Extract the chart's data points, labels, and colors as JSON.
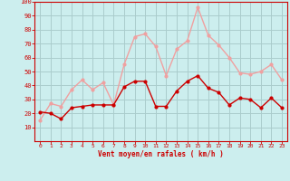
{
  "x": [
    0,
    1,
    2,
    3,
    4,
    5,
    6,
    7,
    8,
    9,
    10,
    11,
    12,
    13,
    14,
    15,
    16,
    17,
    18,
    19,
    20,
    21,
    22,
    23
  ],
  "wind_avg": [
    21,
    20,
    16,
    24,
    25,
    26,
    26,
    26,
    39,
    43,
    43,
    25,
    25,
    36,
    43,
    47,
    38,
    35,
    26,
    31,
    30,
    24,
    31,
    24
  ],
  "wind_gust": [
    15,
    27,
    25,
    37,
    44,
    37,
    42,
    26,
    55,
    75,
    77,
    68,
    47,
    66,
    72,
    96,
    76,
    69,
    60,
    49,
    48,
    50,
    55,
    44
  ],
  "avg_color": "#cc0000",
  "gust_color": "#f0a0a0",
  "bg_color": "#cceeee",
  "grid_color": "#aacccc",
  "xlabel": "Vent moyen/en rafales ( km/h )",
  "xlabel_color": "#cc0000",
  "tick_color": "#cc0000",
  "ylim": [
    0,
    100
  ],
  "yticks": [
    10,
    20,
    30,
    40,
    50,
    60,
    70,
    80,
    90,
    100
  ]
}
